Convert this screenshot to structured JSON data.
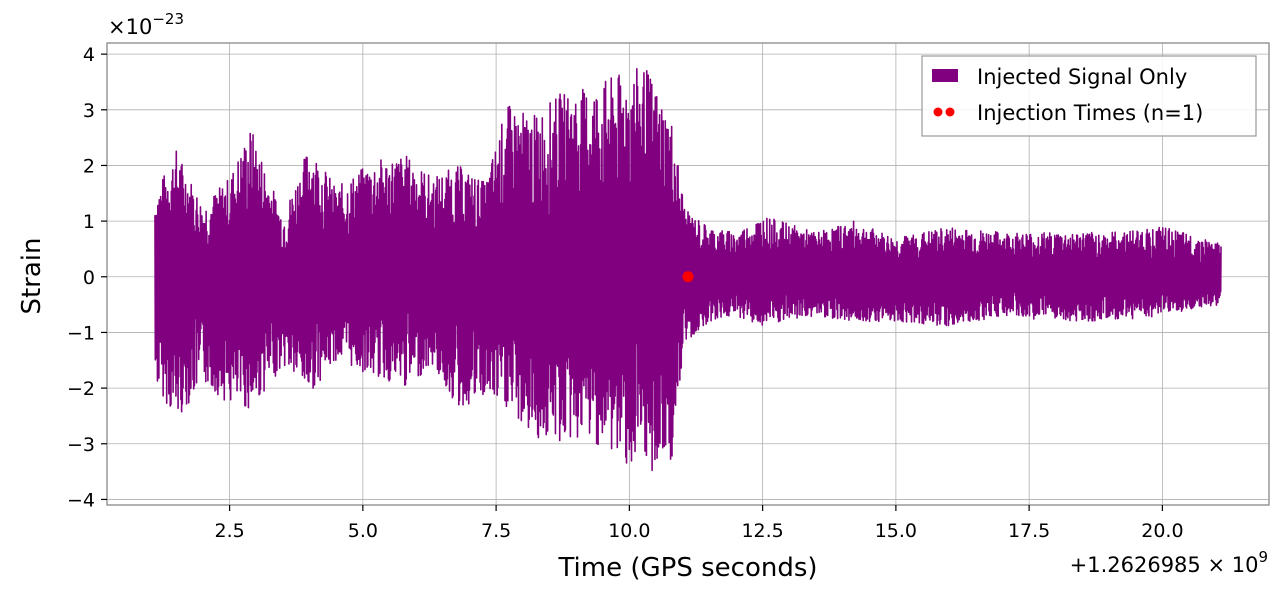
{
  "chart_data": {
    "type": "line",
    "xlabel": "Time (GPS seconds)",
    "ylabel": "Strain",
    "y_multiplier_label": "×10⁻²³",
    "x_offset_label": "+1.2626985 × 10⁹",
    "x_offset_base": "+1.2626985 × 10",
    "x_offset_exp": "9",
    "y_mult_base": "×10",
    "y_mult_exp": "−23",
    "xlim": [
      0.2,
      22.0
    ],
    "ylim": [
      -4.1,
      4.2
    ],
    "x_ticks": [
      2.5,
      5.0,
      7.5,
      10.0,
      12.5,
      15.0,
      17.5,
      20.0
    ],
    "x_tick_labels": [
      "2.5",
      "5.0",
      "7.5",
      "10.0",
      "12.5",
      "15.0",
      "17.5",
      "20.0"
    ],
    "y_ticks": [
      -4,
      -3,
      -2,
      -1,
      0,
      1,
      2,
      3,
      4
    ],
    "y_tick_labels": [
      "−4",
      "−3",
      "−2",
      "−1",
      "0",
      "1",
      "2",
      "3",
      "4"
    ],
    "grid": true,
    "legend_position": "top-right",
    "series": [
      {
        "name": "Injected Signal Only",
        "color": "#800080",
        "x_start": 1.1,
        "x_end": 21.1,
        "envelope": [
          {
            "x": 1.1,
            "ymin": -1.9,
            "ymax": 1.5
          },
          {
            "x": 1.5,
            "ymin": -2.6,
            "ymax": 2.3
          },
          {
            "x": 2.0,
            "ymin": -1.9,
            "ymax": 1.3
          },
          {
            "x": 2.5,
            "ymin": -2.3,
            "ymax": 1.8
          },
          {
            "x": 2.9,
            "ymin": -2.4,
            "ymax": 2.7
          },
          {
            "x": 3.5,
            "ymin": -1.6,
            "ymax": 1.1
          },
          {
            "x": 4.0,
            "ymin": -2.1,
            "ymax": 2.4
          },
          {
            "x": 4.5,
            "ymin": -1.5,
            "ymax": 1.6
          },
          {
            "x": 5.2,
            "ymin": -1.8,
            "ymax": 2.1
          },
          {
            "x": 5.8,
            "ymin": -2.0,
            "ymax": 2.2
          },
          {
            "x": 6.3,
            "ymin": -1.6,
            "ymax": 1.8
          },
          {
            "x": 6.8,
            "ymin": -2.4,
            "ymax": 2.0
          },
          {
            "x": 7.3,
            "ymin": -2.2,
            "ymax": 1.7
          },
          {
            "x": 7.7,
            "ymin": -2.4,
            "ymax": 3.1
          },
          {
            "x": 8.2,
            "ymin": -2.9,
            "ymax": 2.9
          },
          {
            "x": 8.7,
            "ymin": -3.0,
            "ymax": 3.3
          },
          {
            "x": 9.2,
            "ymin": -2.9,
            "ymax": 3.4
          },
          {
            "x": 9.7,
            "ymin": -3.2,
            "ymax": 3.6
          },
          {
            "x": 10.3,
            "ymin": -3.6,
            "ymax": 3.8
          },
          {
            "x": 10.8,
            "ymin": -3.3,
            "ymax": 2.8
          },
          {
            "x": 11.05,
            "ymin": -1.2,
            "ymax": 1.2
          },
          {
            "x": 11.5,
            "ymin": -0.8,
            "ymax": 0.9
          },
          {
            "x": 12.0,
            "ymin": -0.7,
            "ymax": 0.8
          },
          {
            "x": 12.5,
            "ymin": -0.9,
            "ymax": 1.1
          },
          {
            "x": 13.5,
            "ymin": -0.7,
            "ymax": 0.8
          },
          {
            "x": 14.2,
            "ymin": -0.8,
            "ymax": 1.0
          },
          {
            "x": 15.0,
            "ymin": -0.8,
            "ymax": 0.7
          },
          {
            "x": 16.0,
            "ymin": -0.9,
            "ymax": 0.9
          },
          {
            "x": 17.0,
            "ymin": -0.7,
            "ymax": 0.8
          },
          {
            "x": 18.0,
            "ymin": -0.8,
            "ymax": 0.8
          },
          {
            "x": 19.0,
            "ymin": -0.8,
            "ymax": 0.8
          },
          {
            "x": 20.0,
            "ymin": -0.7,
            "ymax": 0.9
          },
          {
            "x": 21.1,
            "ymin": -0.5,
            "ymax": 0.6
          }
        ]
      },
      {
        "name": "Injection Times (n=1)",
        "type": "scatter",
        "color": "#ff0000",
        "points": [
          {
            "x": 11.1,
            "y": 0
          }
        ]
      }
    ]
  }
}
